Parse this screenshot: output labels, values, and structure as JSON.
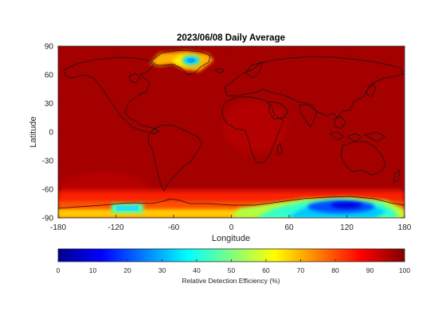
{
  "chart_data": {
    "type": "heatmap",
    "title": "2023/06/08 Daily Average",
    "xlabel": "Longitude",
    "ylabel": "Latitude",
    "xlim": [
      -180,
      180
    ],
    "ylim": [
      -90,
      90
    ],
    "x_ticks": [
      -180,
      -120,
      -60,
      0,
      60,
      120,
      180
    ],
    "y_ticks": [
      90,
      60,
      30,
      0,
      -30,
      -60,
      -90
    ],
    "background_value": 98,
    "colorbar": {
      "label": "Relative Detection Efficiency (%)",
      "ticks": [
        0,
        10,
        20,
        30,
        40,
        50,
        60,
        70,
        80,
        90,
        100
      ],
      "range": [
        0,
        100
      ],
      "colormap": "jet"
    },
    "regions": [
      {
        "lon": [
          -70,
          -20
        ],
        "lat": [
          58,
          84
        ],
        "value": 75
      },
      {
        "lon": [
          -58,
          -30
        ],
        "lat": [
          66,
          78
        ],
        "value": 35
      },
      {
        "lon": [
          -180,
          180
        ],
        "lat": [
          -84,
          -60
        ],
        "value": 85
      },
      {
        "lon": [
          -130,
          -95
        ],
        "lat": [
          -88,
          -78
        ],
        "value": 35
      },
      {
        "lon": [
          0,
          180
        ],
        "lat": [
          -90,
          -76
        ],
        "value": 60
      },
      {
        "lon": [
          60,
          170
        ],
        "lat": [
          -90,
          -70
        ],
        "value": 30
      },
      {
        "lon": [
          75,
          145
        ],
        "lat": [
          -84,
          -70
        ],
        "value": 12
      }
    ]
  }
}
